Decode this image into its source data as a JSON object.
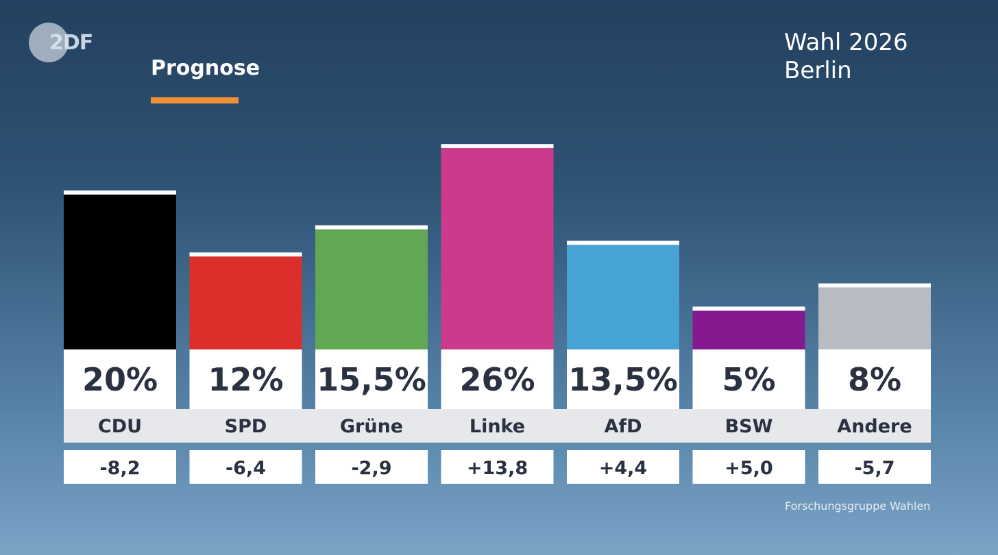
{
  "header": {
    "logo_text": "2DF",
    "subtitle": "Prognose",
    "title_line1": "Wahl 2026",
    "title_line2": "Berlin",
    "accent_color": "#f0913a"
  },
  "source": "Forschungsgruppe Wahlen",
  "chart_data": {
    "type": "bar",
    "title": "Wahl 2026 Berlin",
    "subtitle": "Prognose",
    "categories": [
      "CDU",
      "SPD",
      "Grüne",
      "Linke",
      "AfD",
      "BSW",
      "Andere"
    ],
    "values": [
      20,
      12,
      15.5,
      26,
      13.5,
      5,
      8
    ],
    "value_labels": [
      "20%",
      "12%",
      "15,5%",
      "26%",
      "13,5%",
      "5%",
      "8%"
    ],
    "change_labels": [
      "-8,2",
      "-6,4",
      "-2,9",
      "+13,8",
      "+4,4",
      "+5,0",
      "-5,7"
    ],
    "colors": [
      "#000000",
      "#dc2e2a",
      "#62a753",
      "#cc3a8c",
      "#47a3d4",
      "#861890",
      "#b8bbc1"
    ],
    "unit": "%",
    "grid": false,
    "legend": "none"
  }
}
